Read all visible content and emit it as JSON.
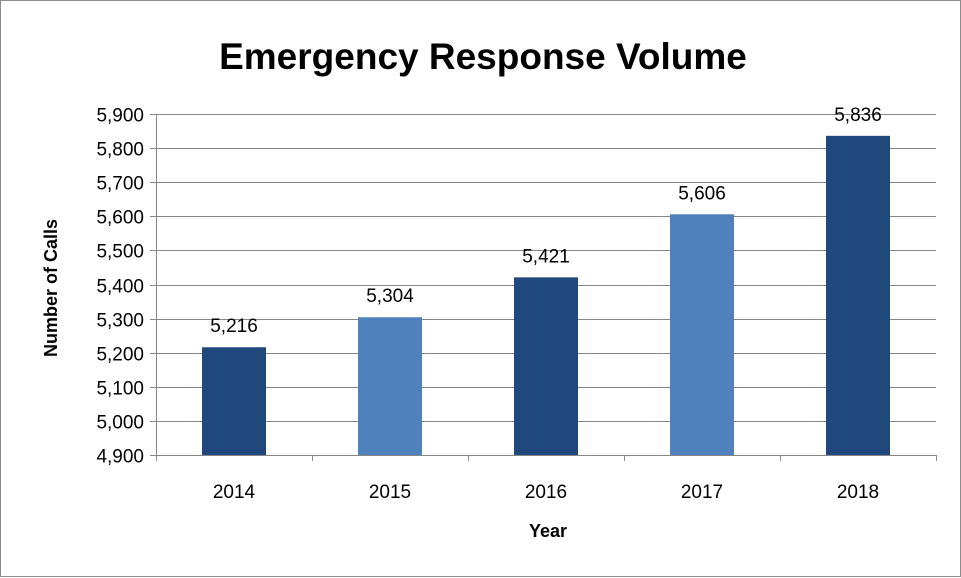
{
  "chart_data": {
    "type": "bar",
    "title": "Emergency Response Volume",
    "xlabel": "Year",
    "ylabel": "Number of Calls",
    "categories": [
      "2014",
      "2015",
      "2016",
      "2017",
      "2018"
    ],
    "values": [
      5216,
      5304,
      5421,
      5606,
      5836
    ],
    "data_labels": [
      "5,216",
      "5,304",
      "5,421",
      "5,606",
      "5,836"
    ],
    "ylim": [
      4900,
      5900
    ],
    "ytick_step": 100,
    "ytick_labels": [
      "4,900",
      "5,000",
      "5,100",
      "5,200",
      "5,300",
      "5,400",
      "5,500",
      "5,600",
      "5,700",
      "5,800",
      "5,900"
    ],
    "grid": true,
    "legend": "none",
    "bar_colors": [
      "#1f497d",
      "#4f81bd",
      "#1f497d",
      "#4f81bd",
      "#1f497d"
    ],
    "gridline_color": "#868686"
  }
}
